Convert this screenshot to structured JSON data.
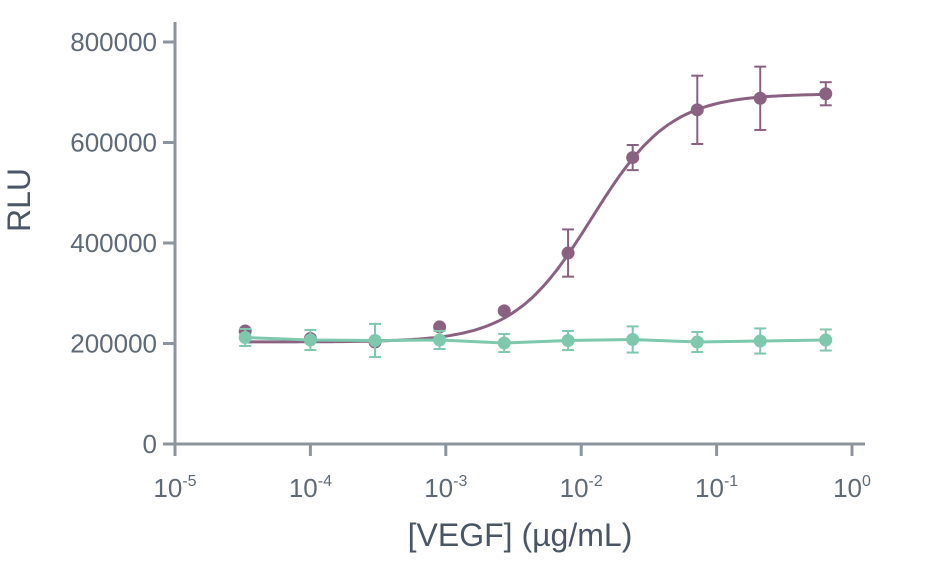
{
  "chart_data": {
    "type": "line",
    "xlabel": "[VEGF] (µg/mL)",
    "ylabel": "RLU",
    "x_scale": "log",
    "xlim": [
      1e-05,
      1
    ],
    "ylim": [
      0,
      800000
    ],
    "x_ticks": [
      {
        "value": 1e-05,
        "base": "10",
        "exp": "-5"
      },
      {
        "value": 0.0001,
        "base": "10",
        "exp": "-4"
      },
      {
        "value": 0.001,
        "base": "10",
        "exp": "-3"
      },
      {
        "value": 0.01,
        "base": "10",
        "exp": "-2"
      },
      {
        "value": 0.1,
        "base": "10",
        "exp": "-1"
      },
      {
        "value": 1,
        "base": "10",
        "exp": "0"
      }
    ],
    "y_ticks": [
      0,
      200000,
      400000,
      600000,
      800000
    ],
    "grid": false,
    "legend": "none",
    "series": [
      {
        "color": "#8a6180",
        "fit": "sigmoid",
        "x": [
          3.3e-05,
          0.0001,
          0.0003,
          0.0009,
          0.0027,
          0.008,
          0.024,
          0.072,
          0.21,
          0.64
        ],
        "y": [
          225000,
          210000,
          203000,
          233000,
          265000,
          380000,
          570000,
          665000,
          688000,
          697000
        ],
        "err": [
          0,
          0,
          0,
          0,
          0,
          47000,
          25000,
          68000,
          63000,
          23000
        ]
      },
      {
        "color": "#7ec8ad",
        "fit": "line",
        "x": [
          3.3e-05,
          0.0001,
          0.0003,
          0.0009,
          0.0027,
          0.008,
          0.024,
          0.072,
          0.21,
          0.64
        ],
        "y": [
          212000,
          207000,
          206000,
          207000,
          201000,
          206000,
          208000,
          203000,
          205000,
          207000
        ],
        "err": [
          17000,
          20000,
          33000,
          18000,
          18000,
          19000,
          26000,
          20000,
          25000,
          21000
        ]
      }
    ]
  }
}
